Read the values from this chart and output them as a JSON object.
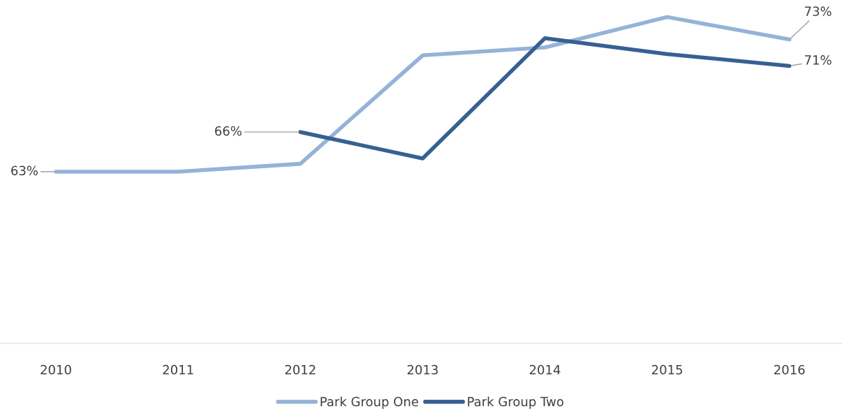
{
  "chart_data": {
    "type": "line",
    "categories": [
      "2010",
      "2011",
      "2012",
      "2013",
      "2014",
      "2015",
      "2016"
    ],
    "tick_labels": "x",
    "grid": false,
    "legend": "bottom",
    "marker": "none",
    "line_style": "solid",
    "series": [
      {
        "name": "Park Group One",
        "color": "#95b3d7",
        "values": [
          63,
          63,
          63.6,
          71.8,
          72.4,
          74.7,
          73
        ],
        "value_labels": [
          "63%",
          null,
          null,
          null,
          null,
          null,
          "73%"
        ]
      },
      {
        "name": "Park Group Two",
        "color": "#376092",
        "values": [
          null,
          null,
          66,
          64,
          73.1,
          71.9,
          71
        ],
        "value_labels": [
          null,
          null,
          "66%",
          null,
          null,
          null,
          "71%"
        ]
      }
    ]
  }
}
